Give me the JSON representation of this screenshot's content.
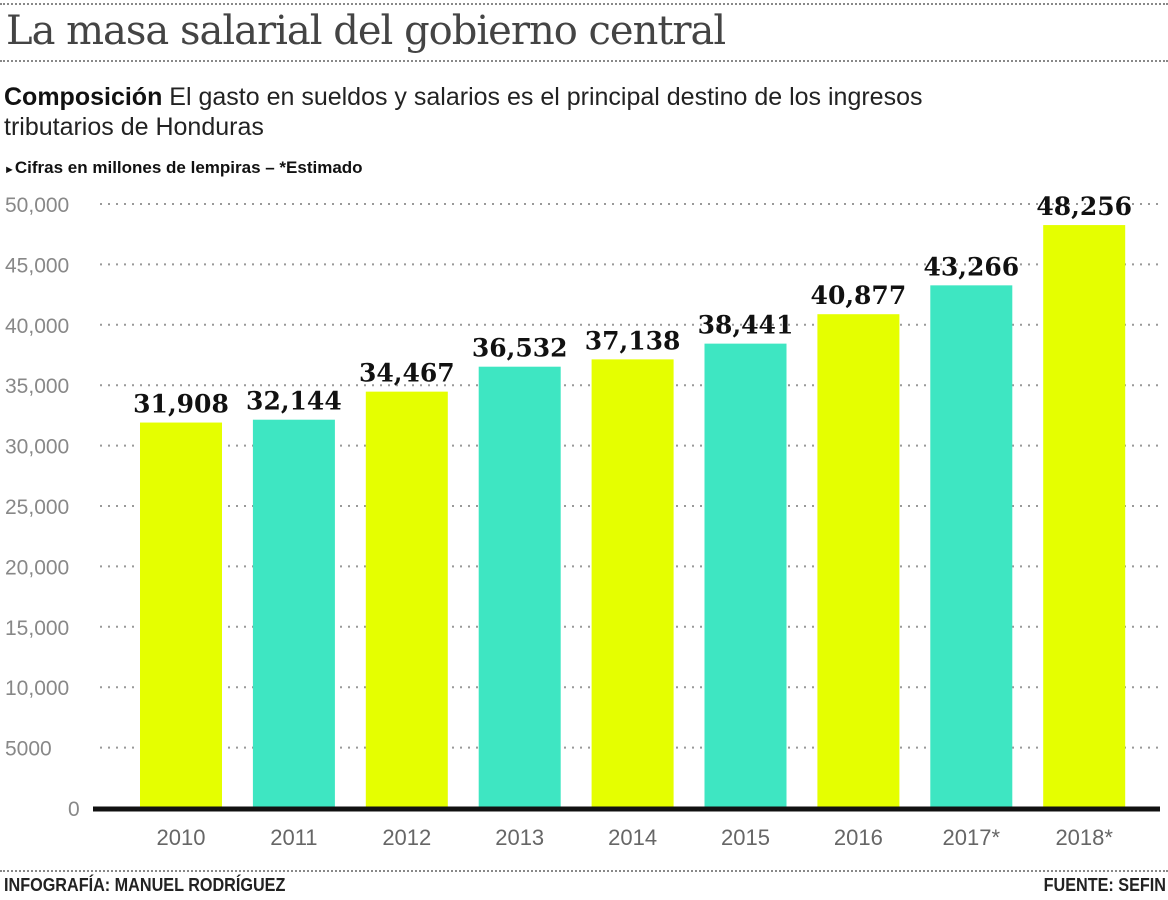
{
  "title": "La masa salarial del  gobierno central",
  "subtitle": {
    "lead": "Composición",
    "text": " El gasto en sueldos y salarios es el principal destino de los ingresos tributarios de Honduras"
  },
  "note": "Cifras en millones de lempiras – *Estimado",
  "footer": {
    "credit": "INFOGRAFÍA: MANUEL RODRÍGUEZ",
    "source": "FUENTE: SEFIN"
  },
  "chart_data": {
    "type": "bar",
    "categories": [
      "2010",
      "2011",
      "2012",
      "2013",
      "2014",
      "2015",
      "2016",
      "2017*",
      "2018*"
    ],
    "values": [
      31908,
      32144,
      34467,
      36532,
      37138,
      38441,
      40877,
      43266,
      48256
    ],
    "data_labels": [
      "31,908",
      "32,144",
      "34,467",
      "36,532",
      "37,138",
      "38,441",
      "40,877",
      "43,266",
      "48,256"
    ],
    "ylim": [
      0,
      50000
    ],
    "yticks": [
      0,
      5000,
      10000,
      15000,
      20000,
      25000,
      30000,
      35000,
      40000,
      45000,
      50000
    ],
    "ytick_labels": [
      "0",
      "5000",
      "10,000",
      "15,000",
      "20,000",
      "25,000",
      "30,000",
      "35,000",
      "40,000",
      "45,000",
      "50,000"
    ],
    "grid": true,
    "bar_colors": [
      "#e5ff00",
      "#3ee6c2",
      "#e5ff00",
      "#3ee6c2",
      "#e5ff00",
      "#3ee6c2",
      "#e5ff00",
      "#3ee6c2",
      "#e5ff00"
    ]
  }
}
